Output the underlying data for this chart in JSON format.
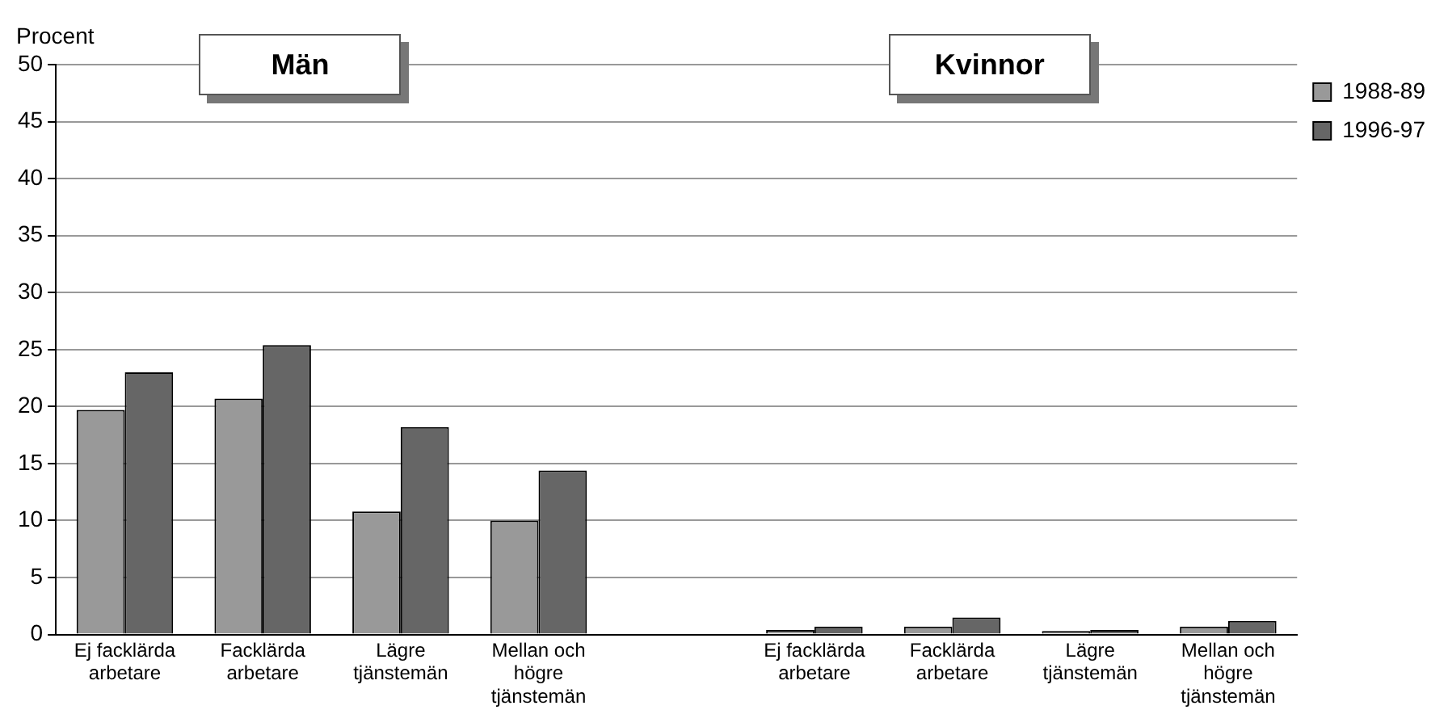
{
  "chart_data": {
    "type": "bar",
    "ylabel": "Procent",
    "categories": [
      "Ej facklärda\narbetare",
      "Facklärda\narbetare",
      "Lägre\ntjänstemän",
      "Mellan och\nhögre\ntjänstemän",
      null,
      "Ej facklärda\narbetare",
      "Facklärda\narbetare",
      "Lägre\ntjänstemän",
      "Mellan och\nhögre\ntjänstemän"
    ],
    "series": [
      {
        "name": "1988-89",
        "color": "#999999",
        "values": [
          19.7,
          20.7,
          10.8,
          10.0,
          null,
          0.4,
          0.7,
          0.3,
          0.7
        ]
      },
      {
        "name": "1996-97",
        "color": "#666666",
        "values": [
          23.0,
          25.4,
          18.2,
          14.4,
          null,
          0.7,
          1.5,
          0.4,
          1.2
        ]
      }
    ],
    "ylim": [
      0,
      50
    ],
    "yticks": [
      0,
      5,
      10,
      15,
      20,
      25,
      30,
      35,
      40,
      45,
      50
    ],
    "grid": "y",
    "legend": "top right",
    "annotations": [
      "Män",
      "Kvinnor"
    ]
  }
}
